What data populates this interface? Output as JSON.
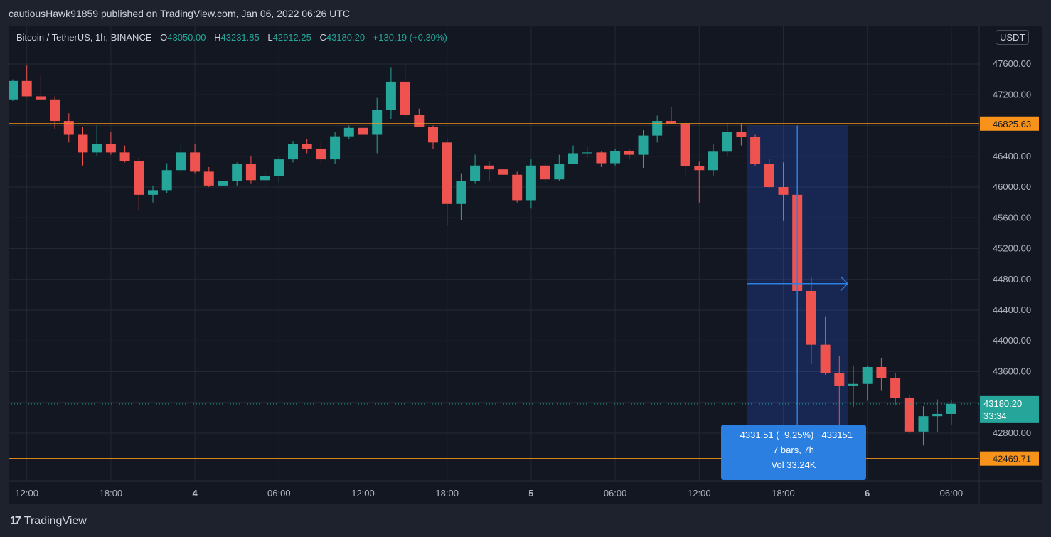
{
  "header": {
    "publisher_line": "cautiousHawk91859 published on TradingView.com, Jan 06, 2022 06:26 UTC"
  },
  "legend": {
    "symbol": "Bitcoin / TetherUS, 1h, BINANCE",
    "o_label": "O",
    "o_value": "43050.00",
    "h_label": "H",
    "h_value": "43231.85",
    "l_label": "L",
    "l_value": "42912.25",
    "c_label": "C",
    "c_value": "43180.20",
    "change": "+130.19 (+0.30%)"
  },
  "currency": "USDT",
  "price_axis_clipped": "4",
  "measure": {
    "line1": "−4331.51 (−9.25%) −433151",
    "line2": "7 bars, 7h",
    "line3": "Vol 33.24K"
  },
  "branding": {
    "name": "TradingView"
  },
  "chart_data": {
    "type": "candlestick",
    "timeframe": "1h",
    "y_ticks": [
      42800,
      43200,
      43600,
      44000,
      44400,
      44800,
      45200,
      45600,
      46000,
      46400,
      46800,
      47200,
      47600
    ],
    "ylim": [
      42180,
      48100
    ],
    "x_ticks": [
      {
        "label": "12:00",
        "bar": 1,
        "bold": false
      },
      {
        "label": "18:00",
        "bar": 7,
        "bold": false
      },
      {
        "label": "4",
        "bar": 13,
        "bold": true
      },
      {
        "label": "06:00",
        "bar": 19,
        "bold": false
      },
      {
        "label": "12:00",
        "bar": 25,
        "bold": false
      },
      {
        "label": "18:00",
        "bar": 31,
        "bold": false
      },
      {
        "label": "5",
        "bar": 37,
        "bold": true
      },
      {
        "label": "06:00",
        "bar": 43,
        "bold": false
      },
      {
        "label": "12:00",
        "bar": 49,
        "bold": false
      },
      {
        "label": "18:00",
        "bar": 55,
        "bold": false
      },
      {
        "label": "6",
        "bar": 61,
        "bold": true
      },
      {
        "label": "06:00",
        "bar": 67,
        "bold": false
      }
    ],
    "horizontal_lines": [
      {
        "price": 46825.63,
        "label": "46825.63",
        "color": "#f7931a"
      },
      {
        "price": 42469.71,
        "label": "42469.71",
        "color": "#f7931a"
      }
    ],
    "last_price": {
      "price": 43180.2,
      "label": "43180.20",
      "countdown": "33:34",
      "color": "#26a69a"
    },
    "measure_range": {
      "start_bar": 53,
      "end_bar": 59,
      "from_price": 46800,
      "to_price": 42469.71
    },
    "candles": [
      {
        "o": 47140,
        "h": 47400,
        "l": 47120,
        "c": 47380
      },
      {
        "o": 47380,
        "h": 47580,
        "l": 47180,
        "c": 47180
      },
      {
        "o": 47180,
        "h": 47460,
        "l": 47130,
        "c": 47140
      },
      {
        "o": 47140,
        "h": 47180,
        "l": 46760,
        "c": 46860
      },
      {
        "o": 46860,
        "h": 46960,
        "l": 46580,
        "c": 46680
      },
      {
        "o": 46680,
        "h": 46780,
        "l": 46280,
        "c": 46450
      },
      {
        "o": 46450,
        "h": 46800,
        "l": 46400,
        "c": 46560
      },
      {
        "o": 46560,
        "h": 46720,
        "l": 46420,
        "c": 46450
      },
      {
        "o": 46450,
        "h": 46540,
        "l": 46320,
        "c": 46340
      },
      {
        "o": 46340,
        "h": 46380,
        "l": 45700,
        "c": 45900
      },
      {
        "o": 45900,
        "h": 46020,
        "l": 45800,
        "c": 45960
      },
      {
        "o": 45960,
        "h": 46310,
        "l": 45920,
        "c": 46220
      },
      {
        "o": 46220,
        "h": 46550,
        "l": 46180,
        "c": 46450
      },
      {
        "o": 46450,
        "h": 46560,
        "l": 46180,
        "c": 46200
      },
      {
        "o": 46200,
        "h": 46260,
        "l": 46000,
        "c": 46020
      },
      {
        "o": 46020,
        "h": 46150,
        "l": 45940,
        "c": 46080
      },
      {
        "o": 46080,
        "h": 46320,
        "l": 46020,
        "c": 46300
      },
      {
        "o": 46300,
        "h": 46400,
        "l": 46050,
        "c": 46090
      },
      {
        "o": 46090,
        "h": 46200,
        "l": 46020,
        "c": 46140
      },
      {
        "o": 46140,
        "h": 46400,
        "l": 46060,
        "c": 46360
      },
      {
        "o": 46360,
        "h": 46600,
        "l": 46320,
        "c": 46560
      },
      {
        "o": 46560,
        "h": 46620,
        "l": 46440,
        "c": 46500
      },
      {
        "o": 46500,
        "h": 46580,
        "l": 46320,
        "c": 46360
      },
      {
        "o": 46360,
        "h": 46720,
        "l": 46300,
        "c": 46660
      },
      {
        "o": 46660,
        "h": 46800,
        "l": 46620,
        "c": 46770
      },
      {
        "o": 46770,
        "h": 46840,
        "l": 46520,
        "c": 46680
      },
      {
        "o": 46680,
        "h": 47160,
        "l": 46440,
        "c": 47000
      },
      {
        "o": 47000,
        "h": 47560,
        "l": 46880,
        "c": 47370
      },
      {
        "o": 47370,
        "h": 47580,
        "l": 46900,
        "c": 46940
      },
      {
        "o": 46940,
        "h": 47020,
        "l": 46800,
        "c": 46780
      },
      {
        "o": 46780,
        "h": 46800,
        "l": 46500,
        "c": 46580
      },
      {
        "o": 46580,
        "h": 46620,
        "l": 45500,
        "c": 45780
      },
      {
        "o": 45780,
        "h": 46180,
        "l": 45570,
        "c": 46080
      },
      {
        "o": 46080,
        "h": 46420,
        "l": 46050,
        "c": 46280
      },
      {
        "o": 46280,
        "h": 46340,
        "l": 46080,
        "c": 46230
      },
      {
        "o": 46230,
        "h": 46300,
        "l": 46090,
        "c": 46160
      },
      {
        "o": 46160,
        "h": 46200,
        "l": 45800,
        "c": 45830
      },
      {
        "o": 45830,
        "h": 46360,
        "l": 45720,
        "c": 46280
      },
      {
        "o": 46280,
        "h": 46320,
        "l": 46060,
        "c": 46100
      },
      {
        "o": 46100,
        "h": 46420,
        "l": 46080,
        "c": 46300
      },
      {
        "o": 46300,
        "h": 46540,
        "l": 46300,
        "c": 46440
      },
      {
        "o": 46440,
        "h": 46530,
        "l": 46380,
        "c": 46450
      },
      {
        "o": 46450,
        "h": 46460,
        "l": 46260,
        "c": 46310
      },
      {
        "o": 46310,
        "h": 46500,
        "l": 46280,
        "c": 46470
      },
      {
        "o": 46470,
        "h": 46500,
        "l": 46360,
        "c": 46420
      },
      {
        "o": 46420,
        "h": 46740,
        "l": 46250,
        "c": 46670
      },
      {
        "o": 46670,
        "h": 46930,
        "l": 46580,
        "c": 46860
      },
      {
        "o": 46860,
        "h": 47040,
        "l": 46820,
        "c": 46830
      },
      {
        "o": 46830,
        "h": 46840,
        "l": 46140,
        "c": 46270
      },
      {
        "o": 46270,
        "h": 46330,
        "l": 45800,
        "c": 46220
      },
      {
        "o": 46220,
        "h": 46560,
        "l": 46140,
        "c": 46460
      },
      {
        "o": 46460,
        "h": 46820,
        "l": 46400,
        "c": 46720
      },
      {
        "o": 46720,
        "h": 46820,
        "l": 46540,
        "c": 46650
      },
      {
        "o": 46650,
        "h": 46680,
        "l": 46280,
        "c": 46300
      },
      {
        "o": 46300,
        "h": 46370,
        "l": 45980,
        "c": 46000
      },
      {
        "o": 46000,
        "h": 46320,
        "l": 45560,
        "c": 45900
      },
      {
        "o": 45900,
        "h": 46100,
        "l": 44650,
        "c": 44650
      },
      {
        "o": 44650,
        "h": 44830,
        "l": 43700,
        "c": 43950
      },
      {
        "o": 43950,
        "h": 44320,
        "l": 43560,
        "c": 43580
      },
      {
        "o": 43580,
        "h": 43800,
        "l": 42470,
        "c": 43420
      },
      {
        "o": 43420,
        "h": 43680,
        "l": 43140,
        "c": 43440
      },
      {
        "o": 43440,
        "h": 43680,
        "l": 43220,
        "c": 43660
      },
      {
        "o": 43660,
        "h": 43780,
        "l": 43350,
        "c": 43520
      },
      {
        "o": 43520,
        "h": 43580,
        "l": 43160,
        "c": 43260
      },
      {
        "o": 43260,
        "h": 43300,
        "l": 42800,
        "c": 42820
      },
      {
        "o": 42820,
        "h": 43150,
        "l": 42640,
        "c": 43020
      },
      {
        "o": 43020,
        "h": 43240,
        "l": 42820,
        "c": 43050
      },
      {
        "o": 43050,
        "h": 43231.85,
        "l": 42912.25,
        "c": 43180.2
      }
    ]
  }
}
